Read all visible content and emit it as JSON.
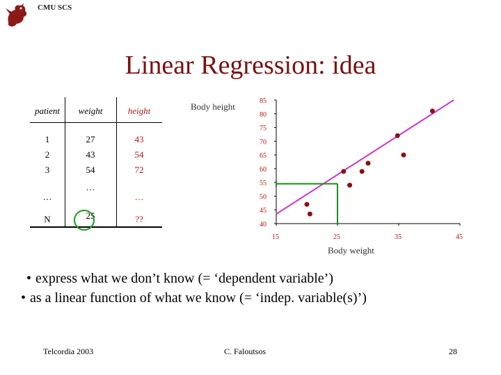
{
  "header": {
    "logo_text": "CMU SCS",
    "logo_icon": "griffin-logo-icon"
  },
  "title": "Linear Regression: idea",
  "table": {
    "headers": [
      "patient",
      "weight",
      "height"
    ],
    "rows": [
      [
        "1",
        "27",
        "43"
      ],
      [
        "2",
        "43",
        "54"
      ],
      [
        "3",
        "54",
        "72"
      ],
      [
        "…",
        "…",
        "…"
      ],
      [
        "N",
        "25",
        "??"
      ]
    ]
  },
  "chart_data": {
    "type": "scatter",
    "title": "",
    "ylabel": "Body height",
    "xlabel": "Body weight",
    "xlim": [
      15,
      45
    ],
    "ylim": [
      40,
      85
    ],
    "xticks": [
      15,
      25,
      35,
      45
    ],
    "yticks": [
      40,
      45,
      50,
      55,
      60,
      65,
      70,
      75,
      80,
      85
    ],
    "series": [
      {
        "points": [
          [
            20,
            47
          ],
          [
            20.5,
            43.5
          ],
          [
            26,
            59
          ],
          [
            27,
            54
          ],
          [
            29,
            59
          ],
          [
            30,
            62
          ],
          [
            34.8,
            72
          ],
          [
            35.8,
            65
          ],
          [
            40.5,
            81
          ]
        ]
      }
    ],
    "fit_line": [
      [
        15,
        43.5
      ],
      [
        44,
        85
      ]
    ],
    "guide": {
      "x": 25,
      "y": 54.5
    },
    "colors": {
      "points": "#8b1010",
      "fit_line": "#cc33cc",
      "guide": "#1a8a1a",
      "ticks": "#b01515"
    }
  },
  "bullets": [
    "express what we don’t know (= ‘dependent variable’)",
    "as a linear function of what we know (= ‘indep. variable(s)’)"
  ],
  "footer": {
    "left": "Telcordia 2003",
    "center": "C. Faloutsos",
    "page": "28"
  }
}
